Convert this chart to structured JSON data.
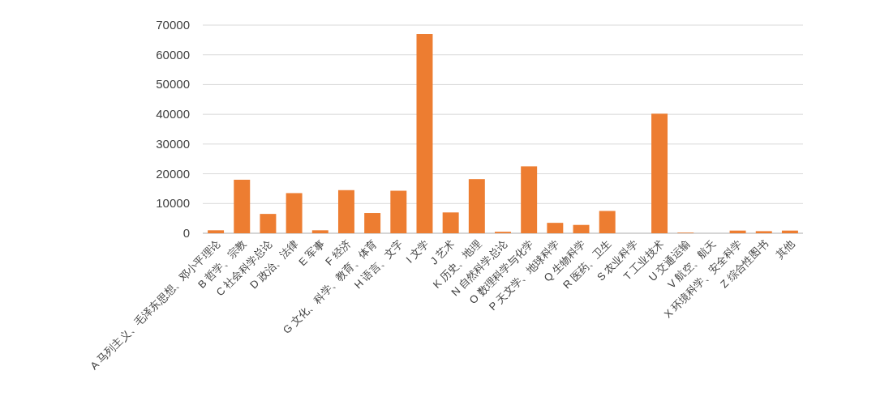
{
  "chart_data": {
    "type": "bar",
    "categories": [
      "A 马列主义、毛泽东思想、邓小平理论",
      "B 哲学、宗教",
      "C 社会科学总论",
      "D 政治、法律",
      "E 军事",
      "F 经济",
      "G 文化、科学、教育、体育",
      "H 语言、文字",
      "I 文学",
      "J 艺术",
      "K 历史、地理",
      "N 自然科学总论",
      "O 数理科学与化学",
      "P 天文学、地球科学",
      "Q 生物科学",
      "R 医药、卫生",
      "S 农业科学",
      "T 工业技术",
      "U 交通运输",
      "V 航空、航天",
      "X 环境科学、安全科学",
      "Z 综合性图书",
      "其他"
    ],
    "values": [
      1000,
      18000,
      6500,
      13500,
      1000,
      14500,
      6800,
      14300,
      67000,
      7000,
      18200,
      500,
      22500,
      3500,
      2800,
      7500,
      0,
      40200,
      200,
      0,
      900,
      700,
      900
    ],
    "color": "#ed7d31",
    "ylim": [
      0,
      70000
    ],
    "yticks": [
      0,
      10000,
      20000,
      30000,
      40000,
      50000,
      60000,
      70000
    ],
    "grid": "y"
  }
}
